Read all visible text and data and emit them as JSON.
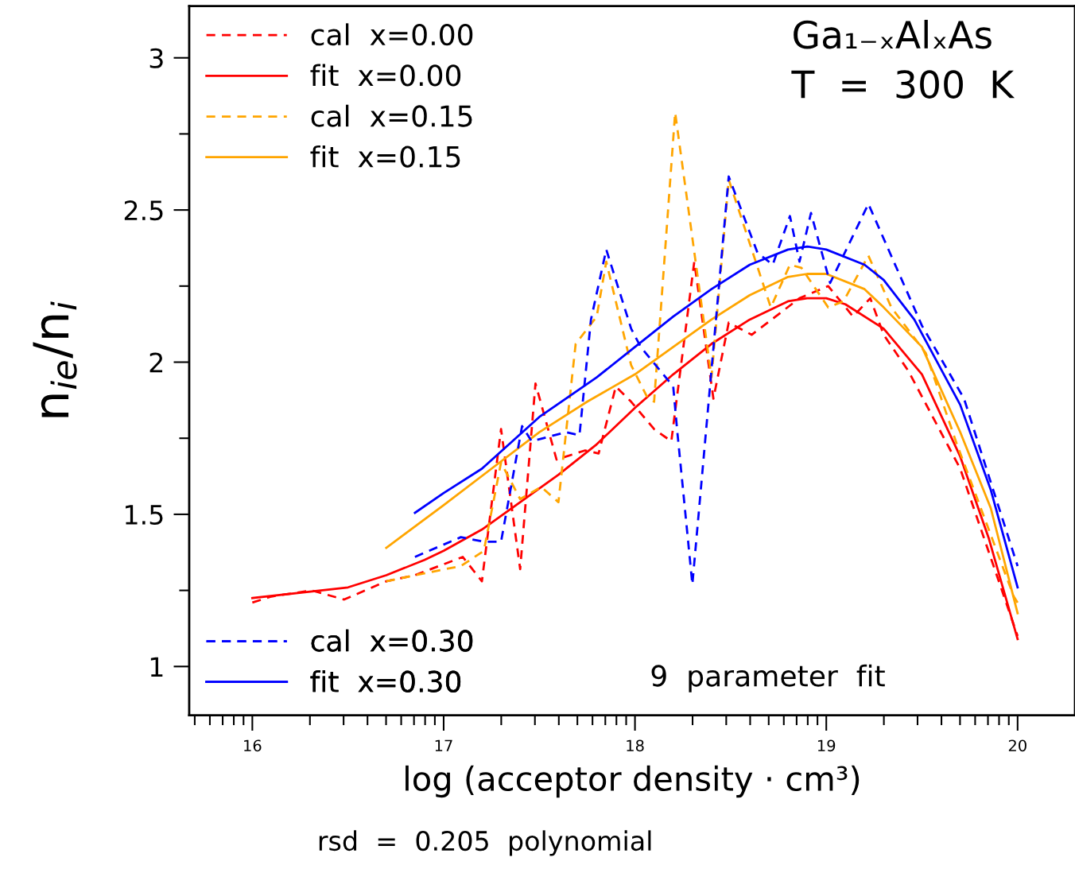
{
  "chart_data": {
    "type": "line",
    "xlabel": "log (acceptor density · cm³)",
    "ylabel": "n$_{ie}$/n$_{i}$",
    "annotations": [
      "Ga₁₋ₓAlₓAs",
      "T  =  300  K",
      "9  parameter  fit",
      "rsd  =  0.205  polynomial"
    ],
    "xlim": [
      15.67,
      20.3
    ],
    "ylim": [
      0.84,
      3.17
    ],
    "xticks": [
      {
        "value": 15.699,
        "label": null
      },
      {
        "value": 15.778,
        "label": null
      },
      {
        "value": 15.845,
        "label": null
      },
      {
        "value": 15.903,
        "label": null
      },
      {
        "value": 15.954,
        "label": null
      },
      16,
      {
        "value": 16.301,
        "label": null
      },
      {
        "value": 16.477,
        "label": null
      },
      {
        "value": 16.602,
        "label": null
      },
      {
        "value": 16.699,
        "label": null
      },
      {
        "value": 16.778,
        "label": null
      },
      {
        "value": 16.845,
        "label": null
      },
      {
        "value": 16.903,
        "label": null
      },
      {
        "value": 16.954,
        "label": null
      },
      17,
      {
        "value": 17.301,
        "label": null
      },
      {
        "value": 17.477,
        "label": null
      },
      {
        "value": 17.602,
        "label": null
      },
      {
        "value": 17.699,
        "label": null
      },
      {
        "value": 17.778,
        "label": null
      },
      {
        "value": 17.845,
        "label": null
      },
      {
        "value": 17.903,
        "label": null
      },
      {
        "value": 17.954,
        "label": null
      },
      18,
      {
        "value": 18.301,
        "label": null
      },
      {
        "value": 18.477,
        "label": null
      },
      {
        "value": 18.602,
        "label": null
      },
      {
        "value": 18.699,
        "label": null
      },
      {
        "value": 18.778,
        "label": null
      },
      {
        "value": 18.845,
        "label": null
      },
      {
        "value": 18.903,
        "label": null
      },
      {
        "value": 18.954,
        "label": null
      },
      19,
      {
        "value": 19.301,
        "label": null
      },
      {
        "value": 19.477,
        "label": null
      },
      {
        "value": 19.602,
        "label": null
      },
      {
        "value": 19.699,
        "label": null
      },
      {
        "value": 19.778,
        "label": null
      },
      {
        "value": 19.845,
        "label": null
      },
      {
        "value": 19.903,
        "label": null
      },
      {
        "value": 19.954,
        "label": null
      },
      20
    ],
    "yticks": [
      1,
      {
        "value": 1.25,
        "label": null
      },
      1.5,
      {
        "value": 1.75,
        "label": null
      },
      2,
      {
        "value": 2.25,
        "label": null
      },
      2.5,
      {
        "value": 2.75,
        "label": null
      },
      3
    ],
    "grid": false,
    "legend": "left",
    "marker": "none",
    "series": [
      {
        "name": "cal  x=0.00",
        "color": "#ff0000",
        "line_style": "dashed",
        "x": [
          16.0,
          16.1,
          16.31,
          16.48,
          16.7,
          16.85,
          17.1,
          17.2,
          17.3,
          17.4,
          17.48,
          17.59,
          17.74,
          17.81,
          17.9,
          17.98,
          18.1,
          18.19,
          18.31,
          18.41,
          18.49,
          18.61,
          18.86,
          19.01,
          19.14,
          19.23,
          19.3,
          19.43,
          19.7,
          19.94,
          20.0
        ],
        "values": [
          1.21,
          1.23,
          1.25,
          1.22,
          1.28,
          1.3,
          1.36,
          1.28,
          1.78,
          1.32,
          1.93,
          1.68,
          1.71,
          1.7,
          1.92,
          1.87,
          1.78,
          1.74,
          2.33,
          1.88,
          2.13,
          2.09,
          2.21,
          2.25,
          2.15,
          2.21,
          2.09,
          1.97,
          1.65,
          1.21,
          1.1
        ]
      },
      {
        "name": "fit  x=0.00",
        "color": "#ff0000",
        "line_style": "solid",
        "x": [
          16.0,
          16.5,
          16.7,
          16.9,
          17.0,
          17.2,
          17.4,
          17.6,
          17.8,
          18.0,
          18.2,
          18.4,
          18.6,
          18.8,
          18.9,
          19.0,
          19.1,
          19.3,
          19.5,
          19.7,
          19.85,
          20.0
        ],
        "values": [
          1.225,
          1.26,
          1.3,
          1.35,
          1.38,
          1.45,
          1.54,
          1.63,
          1.73,
          1.85,
          1.96,
          2.06,
          2.14,
          2.2,
          2.21,
          2.21,
          2.19,
          2.11,
          1.96,
          1.69,
          1.42,
          1.09
        ]
      },
      {
        "name": "cal  x=0.15",
        "color": "#ffa500",
        "line_style": "dashed",
        "x": [
          16.7,
          16.93,
          17.09,
          17.21,
          17.3,
          17.4,
          17.51,
          17.6,
          17.69,
          17.8,
          17.85,
          17.98,
          18.06,
          18.1,
          18.21,
          18.4,
          18.49,
          18.71,
          18.81,
          18.87,
          19.01,
          19.09,
          19.22,
          19.34,
          19.52,
          19.68,
          19.98,
          20.0
        ],
        "values": [
          1.28,
          1.31,
          1.33,
          1.38,
          1.67,
          1.55,
          1.59,
          1.54,
          2.06,
          2.15,
          2.33,
          1.99,
          1.89,
          1.87,
          2.82,
          1.95,
          2.6,
          2.18,
          2.32,
          2.31,
          2.18,
          2.2,
          2.35,
          2.18,
          2.03,
          1.735,
          1.23,
          1.21
        ]
      },
      {
        "name": "fit  x=0.15",
        "color": "#ffa500",
        "line_style": "solid",
        "x": [
          16.7,
          17.0,
          17.25,
          17.5,
          17.75,
          18.0,
          18.2,
          18.4,
          18.6,
          18.8,
          18.9,
          19.0,
          19.2,
          19.3,
          19.5,
          19.7,
          19.86,
          20.0
        ],
        "values": [
          1.39,
          1.53,
          1.65,
          1.77,
          1.87,
          1.96,
          2.05,
          2.14,
          2.22,
          2.28,
          2.29,
          2.29,
          2.24,
          2.18,
          2.05,
          1.77,
          1.52,
          1.175
        ]
      },
      {
        "name": "cal  x=0.30",
        "color": "#0000ff",
        "line_style": "dashed",
        "x": [
          16.85,
          17.09,
          17.21,
          17.3,
          17.41,
          17.46,
          17.64,
          17.71,
          17.77,
          17.85,
          17.98,
          18.03,
          18.2,
          18.22,
          18.3,
          18.49,
          18.64,
          18.72,
          18.81,
          18.86,
          18.92,
          19.02,
          19.22,
          19.5,
          19.72,
          20.0
        ],
        "values": [
          1.36,
          1.425,
          1.41,
          1.41,
          1.79,
          1.74,
          1.77,
          1.76,
          2.14,
          2.37,
          2.11,
          2.05,
          1.92,
          1.78,
          1.27,
          2.61,
          2.36,
          2.32,
          2.48,
          2.33,
          2.49,
          2.26,
          2.52,
          2.12,
          1.88,
          1.33
        ]
      },
      {
        "name": "fit  x=0.30",
        "color": "#0000ff",
        "line_style": "solid",
        "x": [
          16.85,
          17.0,
          17.2,
          17.5,
          17.8,
          18.0,
          18.2,
          18.4,
          18.6,
          18.8,
          18.9,
          19.0,
          19.2,
          19.3,
          19.46,
          19.7,
          19.86,
          20.0
        ],
        "values": [
          1.505,
          1.57,
          1.65,
          1.82,
          1.95,
          2.05,
          2.15,
          2.24,
          2.32,
          2.37,
          2.38,
          2.37,
          2.32,
          2.27,
          2.14,
          1.86,
          1.58,
          1.26
        ]
      }
    ]
  }
}
